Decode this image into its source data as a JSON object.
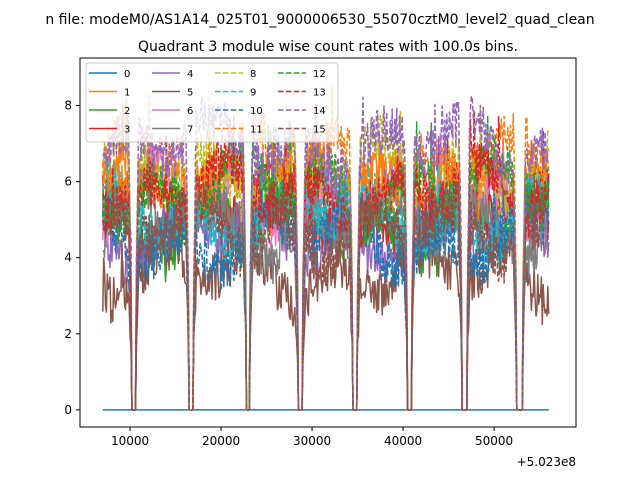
{
  "chart_data": {
    "type": "line",
    "suptitle": "n file: modeM0/AS1A14_025T01_9000006530_55070cztM0_level2_quad_clean",
    "title": "Quadrant 3 module wise count rates with 100.0s bins.",
    "xlabel": "",
    "ylabel": "",
    "x_offset_label": "+5.023e8",
    "xlim": [
      4500,
      59000
    ],
    "ylim": [
      -0.45,
      9.25
    ],
    "x_ticks": [
      10000,
      20000,
      30000,
      40000,
      50000
    ],
    "x_tick_labels": [
      "10000",
      "20000",
      "30000",
      "40000",
      "50000"
    ],
    "y_ticks": [
      0,
      2,
      4,
      6,
      8
    ],
    "y_tick_labels": [
      "0",
      "2",
      "4",
      "6",
      "8"
    ],
    "legend_position": "upper-left",
    "x_start": 7000,
    "x_end": 56000,
    "bin_size": 100,
    "gaps": [
      [
        10100,
        10700
      ],
      [
        16400,
        17000
      ],
      [
        22700,
        23200
      ],
      [
        28400,
        29000
      ],
      [
        34400,
        35000
      ],
      [
        40400,
        41000
      ],
      [
        46400,
        47100
      ],
      [
        52400,
        53200
      ]
    ],
    "series": [
      {
        "name": "0",
        "color": "#1f77b4",
        "dash": "solid",
        "level": 0.0
      },
      {
        "name": "1",
        "color": "#ff7f0e",
        "dash": "solid",
        "level": 6.1
      },
      {
        "name": "2",
        "color": "#2ca02c",
        "dash": "solid",
        "level": 5.0
      },
      {
        "name": "3",
        "color": "#d62728",
        "dash": "solid",
        "level": 5.3
      },
      {
        "name": "4",
        "color": "#9467bd",
        "dash": "solid",
        "level": 4.6
      },
      {
        "name": "5",
        "color": "#8c564b",
        "dash": "solid",
        "level": 3.6
      },
      {
        "name": "6",
        "color": "#e377c2",
        "dash": "solid",
        "level": 5.6
      },
      {
        "name": "7",
        "color": "#7f7f7f",
        "dash": "solid",
        "level": 4.9
      },
      {
        "name": "8",
        "color": "#bcbd22",
        "dash": "dashed",
        "level": 6.3
      },
      {
        "name": "9",
        "color": "#17becf",
        "dash": "dashed",
        "level": 5.1
      },
      {
        "name": "10",
        "color": "#1f77b4",
        "dash": "dashed",
        "level": 4.5
      },
      {
        "name": "11",
        "color": "#ff7f0e",
        "dash": "dashed",
        "level": 6.5
      },
      {
        "name": "12",
        "color": "#2ca02c",
        "dash": "dashed",
        "level": 5.8
      },
      {
        "name": "13",
        "color": "#d62728",
        "dash": "dashed",
        "level": 5.7
      },
      {
        "name": "14",
        "color": "#9467bd",
        "dash": "dashed",
        "level": 6.9
      },
      {
        "name": "15",
        "color": "#8c564b",
        "dash": "dashed",
        "level": 4.7
      }
    ]
  }
}
